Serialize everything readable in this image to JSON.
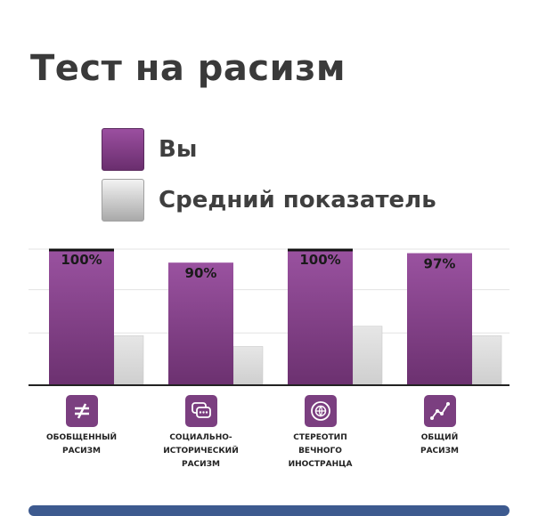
{
  "title": "Тест на расизм",
  "legend": {
    "you": "Вы",
    "average": "Средний показатель"
  },
  "colors": {
    "you": "#7b3f80",
    "average": "#d8d8d8",
    "axis": "#222222"
  },
  "chart_data": {
    "type": "bar",
    "title": "Тест на расизм",
    "categories": [
      "ОБОБЩЕННЫЙ РАСИЗМ",
      "СОЦИАЛЬНО-ИСТОРИЧЕСКИЙ РАСИЗМ",
      "СТЕРЕОТИП ВЕЧНОГО ИНОСТРАНЦА",
      "ОБЩИЙ РАСИЗМ"
    ],
    "series": [
      {
        "name": "Вы",
        "values": [
          100,
          90,
          100,
          97
        ],
        "labels": [
          "100%",
          "90%",
          "100%",
          "97%"
        ]
      },
      {
        "name": "Средний показатель",
        "values": [
          36,
          28,
          43,
          36
        ]
      }
    ],
    "ylim": [
      0,
      100
    ],
    "grid": true,
    "legend": "top-left"
  },
  "categories_display": [
    {
      "label": "ОБОБЩЕННЫЙ\nРАСИЗМ",
      "icon": "not-equal-icon"
    },
    {
      "label": "СОЦИАЛЬНО-\nИСТОРИЧЕСКИЙ\nРАСИЗМ",
      "icon": "chat-bubbles-icon"
    },
    {
      "label": "СТЕРЕОТИП\nВЕЧНОГО\nИНОСТРАНЦА",
      "icon": "globe-cycle-icon"
    },
    {
      "label": "ОБЩИЙ\nРАСИЗМ",
      "icon": "line-graph-icon"
    }
  ]
}
